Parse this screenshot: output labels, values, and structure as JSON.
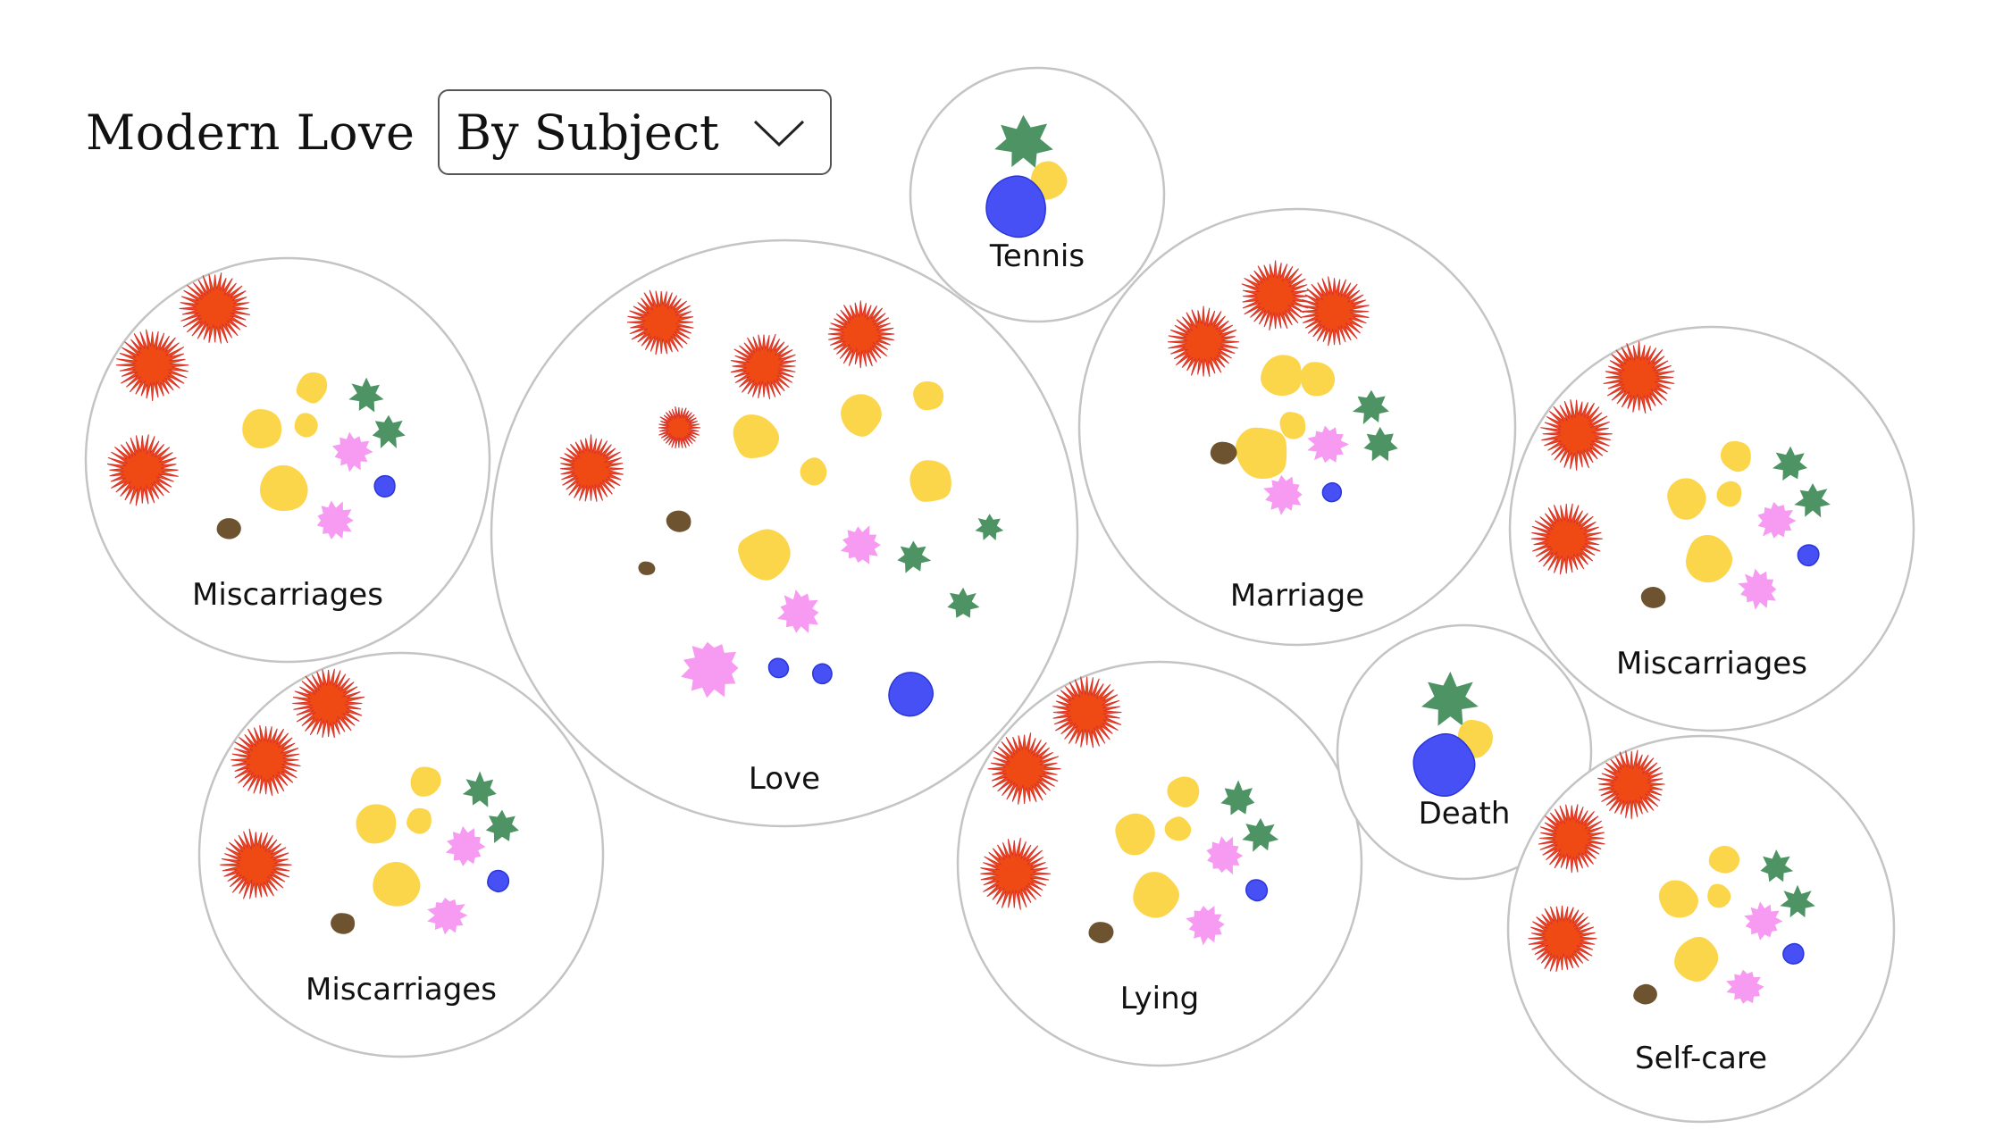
{
  "header": {
    "title": "Modern Love",
    "dropdown": {
      "selected": "By Subject",
      "icon": "chevron-down-icon"
    }
  },
  "colors": {
    "red": "#f04a14",
    "yellow": "#fbd54a",
    "green": "#4e9364",
    "pink": "#f79af1",
    "brown": "#6e5330",
    "blue": "#4650f5",
    "circle_stroke": "#c4c4c4"
  },
  "groups": [
    {
      "name": "miscarriages-1",
      "label": "Miscarriages",
      "blobs": [
        {
          "kind": "red",
          "size": 0.34
        },
        {
          "kind": "red",
          "size": 0.34
        },
        {
          "kind": "red",
          "size": 0.34
        },
        {
          "kind": "yellow",
          "size": 0.16
        },
        {
          "kind": "yellow",
          "size": 0.21
        },
        {
          "kind": "yellow",
          "size": 0.13
        },
        {
          "kind": "yellow",
          "size": 0.24
        },
        {
          "kind": "green",
          "size": 0.18
        },
        {
          "kind": "green",
          "size": 0.18
        },
        {
          "kind": "pink",
          "size": 0.2
        },
        {
          "kind": "pink",
          "size": 0.2
        },
        {
          "kind": "blue",
          "size": 0.11
        },
        {
          "kind": "brown",
          "size": 0.13
        }
      ]
    },
    {
      "name": "miscarriages-2",
      "label": "Miscarriages",
      "blobs": [
        {
          "kind": "red",
          "size": 0.34
        },
        {
          "kind": "red",
          "size": 0.34
        },
        {
          "kind": "red",
          "size": 0.34
        },
        {
          "kind": "yellow",
          "size": 0.16
        },
        {
          "kind": "yellow",
          "size": 0.21
        },
        {
          "kind": "yellow",
          "size": 0.13
        },
        {
          "kind": "yellow",
          "size": 0.24
        },
        {
          "kind": "green",
          "size": 0.18
        },
        {
          "kind": "green",
          "size": 0.18
        },
        {
          "kind": "pink",
          "size": 0.2
        },
        {
          "kind": "pink",
          "size": 0.2
        },
        {
          "kind": "blue",
          "size": 0.11
        },
        {
          "kind": "brown",
          "size": 0.13
        }
      ]
    },
    {
      "name": "love",
      "label": "Love",
      "blobs": [
        {
          "kind": "red",
          "size": 0.22
        },
        {
          "kind": "red",
          "size": 0.22
        },
        {
          "kind": "red",
          "size": 0.22
        },
        {
          "kind": "red",
          "size": 0.14
        },
        {
          "kind": "red",
          "size": 0.22
        },
        {
          "kind": "yellow",
          "size": 0.11
        },
        {
          "kind": "yellow",
          "size": 0.16
        },
        {
          "kind": "yellow",
          "size": 0.15
        },
        {
          "kind": "yellow",
          "size": 0.1
        },
        {
          "kind": "yellow",
          "size": 0.16
        },
        {
          "kind": "yellow",
          "size": 0.18
        },
        {
          "kind": "green",
          "size": 0.1
        },
        {
          "kind": "green",
          "size": 0.12
        },
        {
          "kind": "green",
          "size": 0.12
        },
        {
          "kind": "pink",
          "size": 0.14
        },
        {
          "kind": "pink",
          "size": 0.15
        },
        {
          "kind": "pink",
          "size": 0.21
        },
        {
          "kind": "blue",
          "size": 0.16
        },
        {
          "kind": "blue",
          "size": 0.07
        },
        {
          "kind": "blue",
          "size": 0.07
        },
        {
          "kind": "brown",
          "size": 0.09
        },
        {
          "kind": "brown",
          "size": 0.06
        }
      ]
    },
    {
      "name": "tennis",
      "label": "Tennis",
      "blobs": [
        {
          "kind": "green",
          "size": 0.46
        },
        {
          "kind": "yellow",
          "size": 0.32
        },
        {
          "kind": "blue",
          "size": 0.5
        }
      ]
    },
    {
      "name": "marriage",
      "label": "Marriage",
      "blobs": [
        {
          "kind": "red",
          "size": 0.31
        },
        {
          "kind": "red",
          "size": 0.31
        },
        {
          "kind": "red",
          "size": 0.31
        },
        {
          "kind": "yellow",
          "size": 0.2
        },
        {
          "kind": "yellow",
          "size": 0.16
        },
        {
          "kind": "yellow",
          "size": 0.13
        },
        {
          "kind": "yellow",
          "size": 0.25
        },
        {
          "kind": "green",
          "size": 0.17
        },
        {
          "kind": "green",
          "size": 0.17
        },
        {
          "kind": "pink",
          "size": 0.19
        },
        {
          "kind": "pink",
          "size": 0.19
        },
        {
          "kind": "brown",
          "size": 0.13
        },
        {
          "kind": "blue",
          "size": 0.09
        }
      ]
    },
    {
      "name": "miscarriages-3",
      "label": "Miscarriages",
      "blobs": [
        {
          "kind": "red",
          "size": 0.34
        },
        {
          "kind": "red",
          "size": 0.34
        },
        {
          "kind": "red",
          "size": 0.34
        },
        {
          "kind": "yellow",
          "size": 0.16
        },
        {
          "kind": "yellow",
          "size": 0.21
        },
        {
          "kind": "yellow",
          "size": 0.13
        },
        {
          "kind": "yellow",
          "size": 0.24
        },
        {
          "kind": "green",
          "size": 0.18
        },
        {
          "kind": "green",
          "size": 0.18
        },
        {
          "kind": "pink",
          "size": 0.2
        },
        {
          "kind": "pink",
          "size": 0.2
        },
        {
          "kind": "blue",
          "size": 0.11
        },
        {
          "kind": "brown",
          "size": 0.13
        }
      ]
    },
    {
      "name": "lying",
      "label": "Lying",
      "blobs": [
        {
          "kind": "red",
          "size": 0.34
        },
        {
          "kind": "red",
          "size": 0.34
        },
        {
          "kind": "red",
          "size": 0.34
        },
        {
          "kind": "yellow",
          "size": 0.16
        },
        {
          "kind": "yellow",
          "size": 0.21
        },
        {
          "kind": "yellow",
          "size": 0.13
        },
        {
          "kind": "yellow",
          "size": 0.24
        },
        {
          "kind": "green",
          "size": 0.18
        },
        {
          "kind": "green",
          "size": 0.18
        },
        {
          "kind": "pink",
          "size": 0.2
        },
        {
          "kind": "pink",
          "size": 0.2
        },
        {
          "kind": "blue",
          "size": 0.11
        },
        {
          "kind": "brown",
          "size": 0.13
        }
      ]
    },
    {
      "name": "death",
      "label": "Death",
      "blobs": [
        {
          "kind": "green",
          "size": 0.46
        },
        {
          "kind": "yellow",
          "size": 0.32
        },
        {
          "kind": "blue",
          "size": 0.5
        }
      ]
    },
    {
      "name": "self-care",
      "label": "Self-care",
      "blobs": [
        {
          "kind": "red",
          "size": 0.34
        },
        {
          "kind": "red",
          "size": 0.34
        },
        {
          "kind": "red",
          "size": 0.34
        },
        {
          "kind": "yellow",
          "size": 0.16
        },
        {
          "kind": "yellow",
          "size": 0.21
        },
        {
          "kind": "yellow",
          "size": 0.13
        },
        {
          "kind": "yellow",
          "size": 0.24
        },
        {
          "kind": "green",
          "size": 0.18
        },
        {
          "kind": "green",
          "size": 0.18
        },
        {
          "kind": "pink",
          "size": 0.2
        },
        {
          "kind": "pink",
          "size": 0.2
        },
        {
          "kind": "blue",
          "size": 0.11
        },
        {
          "kind": "brown",
          "size": 0.13
        }
      ]
    }
  ]
}
